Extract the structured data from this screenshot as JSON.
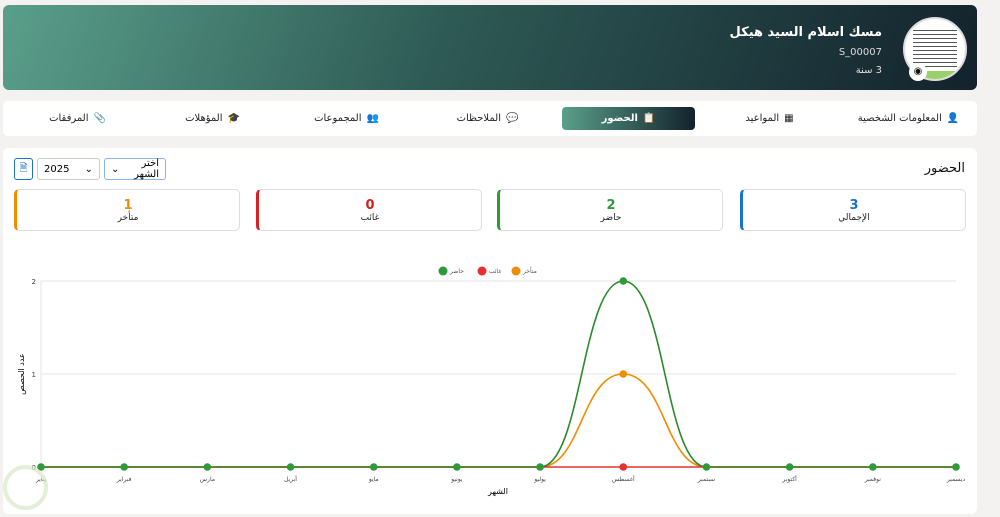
{
  "header": {
    "name": "مسك اسلام السيد هيكل",
    "student_id": "S_00007",
    "age": "3 سنة"
  },
  "tabs": [
    {
      "label": "المعلومات الشخصية",
      "icon": "user-icon"
    },
    {
      "label": "المواعيد",
      "icon": "calendar-icon"
    },
    {
      "label": "الحضور",
      "icon": "clipboard-check-icon",
      "active": true
    },
    {
      "label": "الملاحظات",
      "icon": "comments-icon"
    },
    {
      "label": "المجموعات",
      "icon": "users-icon"
    },
    {
      "label": "المؤهلات",
      "icon": "graduation-cap-icon"
    },
    {
      "label": "المرفقات",
      "icon": "paperclip-icon"
    }
  ],
  "section": {
    "title": "الحضور",
    "month_select": "اختر الشهر",
    "year_select": "2025",
    "export_icon": "pdf-file-icon"
  },
  "stats": [
    {
      "value": "3",
      "label": "الإجمالي",
      "color": "#1a73c9"
    },
    {
      "value": "2",
      "label": "حاضر",
      "color": "#2e9a3a"
    },
    {
      "value": "0",
      "label": "غائب",
      "color": "#d42020"
    },
    {
      "value": "1",
      "label": "متأخر",
      "color": "#f08c00"
    }
  ],
  "chart_data": {
    "type": "line",
    "xlabel": "الشهر",
    "ylabel": "عدد الحصص",
    "ylim": [
      0,
      2
    ],
    "yticks": [
      "0",
      "1",
      "2"
    ],
    "grid": true,
    "legend": "top-center",
    "categories": [
      "يناير",
      "فبراير",
      "مارس",
      "أبريل",
      "مايو",
      "يونيو",
      "يوليو",
      "أغسطس",
      "سبتمبر",
      "أكتوبر",
      "نوفمبر",
      "ديسمبر"
    ],
    "series": [
      {
        "name": "متأخر",
        "color": "#f08c00",
        "values": [
          0,
          0,
          0,
          0,
          0,
          0,
          0,
          1,
          0,
          0,
          0,
          0
        ]
      },
      {
        "name": "غائب",
        "color": "#e53030",
        "values": [
          0,
          0,
          0,
          0,
          0,
          0,
          0,
          0,
          0,
          0,
          0,
          0
        ]
      },
      {
        "name": "حاضر",
        "color": "#2e9a3a",
        "values": [
          0,
          0,
          0,
          0,
          0,
          0,
          0,
          2,
          0,
          0,
          0,
          0
        ]
      }
    ]
  }
}
